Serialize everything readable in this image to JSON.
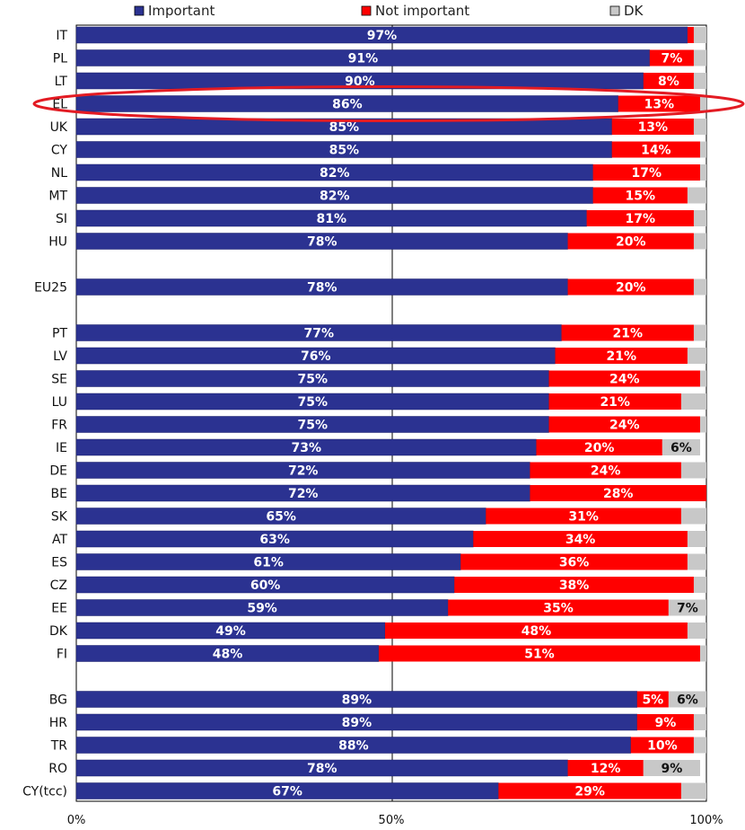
{
  "chart_data": {
    "type": "bar",
    "orientation": "horizontal",
    "stacked": true,
    "percent": true,
    "title": "",
    "xlabel": "",
    "ylabel": "",
    "xlim": [
      0,
      100
    ],
    "xticks": [
      "0%",
      "50%",
      "100%"
    ],
    "legend_position": "top",
    "highlighted_category": "EL",
    "highlight_color": "#e31b23",
    "series": [
      {
        "name": "Important",
        "color": "#2b3291",
        "values": [
          97,
          91,
          90,
          86,
          85,
          85,
          82,
          82,
          81,
          78,
          null,
          78,
          null,
          77,
          76,
          75,
          75,
          75,
          73,
          72,
          72,
          65,
          63,
          61,
          60,
          59,
          49,
          48,
          null,
          89,
          89,
          88,
          78,
          67
        ],
        "labels": [
          "97%",
          "91%",
          "90%",
          "86%",
          "85%",
          "85%",
          "82%",
          "82%",
          "81%",
          "78%",
          "",
          "78%",
          "",
          "77%",
          "76%",
          "75%",
          "75%",
          "75%",
          "73%",
          "72%",
          "72%",
          "65%",
          "63%",
          "61%",
          "60%",
          "59%",
          "49%",
          "48%",
          "",
          "89%",
          "89%",
          "88%",
          "78%",
          "67%"
        ]
      },
      {
        "name": "Not important",
        "color": "#ff0000",
        "values": [
          1,
          7,
          8,
          13,
          13,
          14,
          17,
          15,
          17,
          20,
          null,
          20,
          null,
          21,
          21,
          24,
          21,
          24,
          20,
          24,
          28,
          31,
          34,
          36,
          38,
          35,
          48,
          51,
          null,
          5,
          9,
          10,
          12,
          29
        ],
        "labels": [
          "",
          "7%",
          "8%",
          "13%",
          "13%",
          "14%",
          "17%",
          "15%",
          "17%",
          "20%",
          "",
          "20%",
          "",
          "21%",
          "21%",
          "24%",
          "21%",
          "24%",
          "20%",
          "24%",
          "28%",
          "31%",
          "34%",
          "36%",
          "38%",
          "35%",
          "48%",
          "51%",
          "",
          "5%",
          "9%",
          "10%",
          "12%",
          "29%"
        ]
      },
      {
        "name": "DK",
        "color": "#c8c8c8",
        "values": [
          2,
          2,
          2,
          1,
          2,
          1,
          1,
          3,
          2,
          2,
          null,
          2,
          null,
          2,
          3,
          1,
          4,
          1,
          6,
          4,
          0,
          4,
          3,
          3,
          2,
          7,
          3,
          1,
          null,
          6,
          2,
          2,
          9,
          4
        ],
        "labels": [
          "",
          "",
          "",
          "",
          "",
          "",
          "",
          "",
          "",
          "",
          "",
          "",
          "",
          "",
          "",
          "",
          "",
          "",
          "6%",
          "",
          "",
          "",
          "",
          "",
          "",
          "7%",
          "",
          "",
          "",
          "6%",
          "",
          "",
          "9%",
          ""
        ]
      }
    ],
    "categories": [
      "IT",
      "PL",
      "LT",
      "EL",
      "UK",
      "CY",
      "NL",
      "MT",
      "SI",
      "HU",
      "",
      "EU25",
      "",
      "PT",
      "LV",
      "SE",
      "LU",
      "FR",
      "IE",
      "DE",
      "BE",
      "SK",
      "AT",
      "ES",
      "CZ",
      "EE",
      "DK",
      "FI",
      "",
      "BG",
      "HR",
      "TR",
      "RO",
      "CY(tcc)"
    ]
  }
}
